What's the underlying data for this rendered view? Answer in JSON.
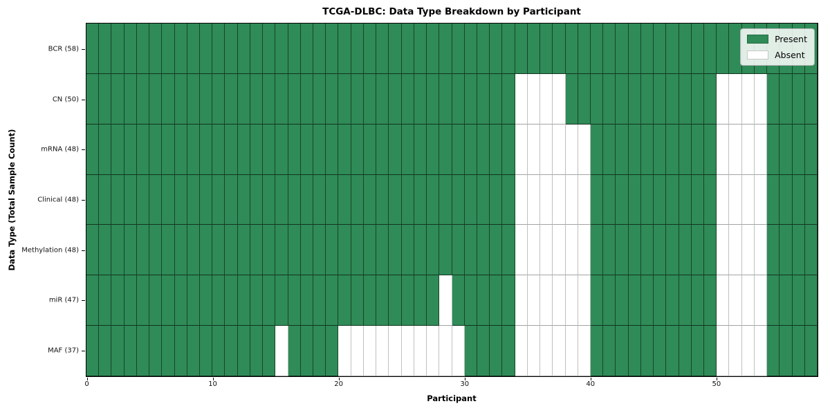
{
  "chart_data": {
    "type": "heatmap",
    "title": "TCGA-DLBC: Data Type Breakdown by Participant",
    "xlabel": "Participant",
    "ylabel": "Data Type (Total Sample Count)",
    "n_participants": 58,
    "x_ticks": [
      0,
      10,
      20,
      30,
      40,
      50
    ],
    "grid": "cell-edges",
    "legend_position": "upper right",
    "colors": {
      "present": "#2f8b57",
      "absent": "#ffffff"
    },
    "rows": [
      {
        "label": "BCR (58)",
        "name": "BCR",
        "present_count": 58,
        "absent_columns": []
      },
      {
        "label": "CN (50)",
        "name": "CN",
        "present_count": 50,
        "absent_columns": [
          34,
          35,
          36,
          37,
          50,
          51,
          52,
          53
        ]
      },
      {
        "label": "mRNA (48)",
        "name": "mRNA",
        "present_count": 48,
        "absent_columns": [
          34,
          35,
          36,
          37,
          38,
          39,
          50,
          51,
          52,
          53
        ]
      },
      {
        "label": "Clinical (48)",
        "name": "Clinical",
        "present_count": 48,
        "absent_columns": [
          34,
          35,
          36,
          37,
          38,
          39,
          50,
          51,
          52,
          53
        ]
      },
      {
        "label": "Methylation (48)",
        "name": "Methylation",
        "present_count": 48,
        "absent_columns": [
          34,
          35,
          36,
          37,
          38,
          39,
          50,
          51,
          52,
          53
        ]
      },
      {
        "label": "miR (47)",
        "name": "miR",
        "present_count": 47,
        "absent_columns": [
          28,
          34,
          35,
          36,
          37,
          38,
          39,
          50,
          51,
          52,
          53
        ]
      },
      {
        "label": "MAF (37)",
        "name": "MAF",
        "present_count": 37,
        "absent_columns": [
          15,
          20,
          21,
          22,
          23,
          24,
          25,
          26,
          27,
          28,
          29,
          34,
          35,
          36,
          37,
          38,
          39,
          50,
          51,
          52,
          53
        ]
      }
    ]
  },
  "legend": {
    "items": [
      {
        "label": "Present",
        "color": "#2f8b57"
      },
      {
        "label": "Absent",
        "color": "#ffffff"
      }
    ]
  }
}
